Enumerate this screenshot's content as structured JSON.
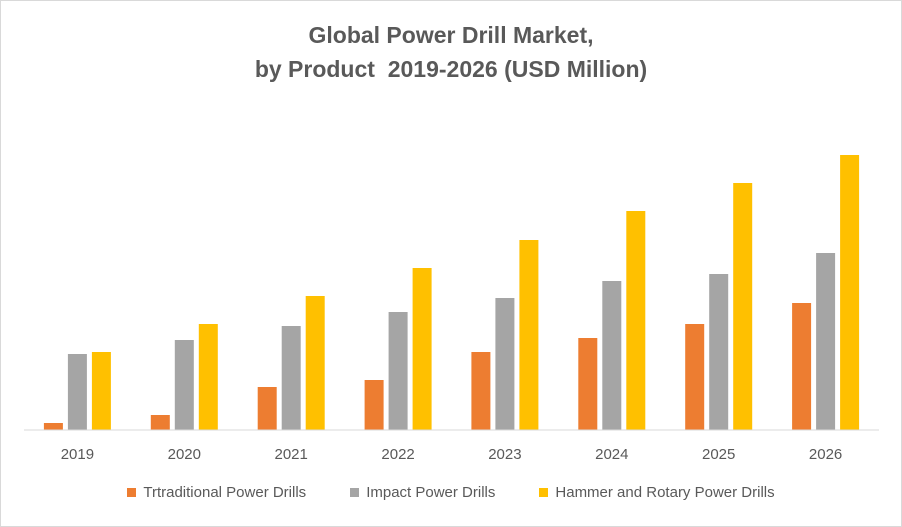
{
  "chart_data": {
    "type": "bar",
    "title_lines": [
      "Global Power Drill Market,",
      "by Product  2019-2026 (USD Million)"
    ],
    "categories": [
      "2019",
      "2020",
      "2021",
      "2022",
      "2023",
      "2024",
      "2025",
      "2026"
    ],
    "series": [
      {
        "name": "Trtraditional Power Drills",
        "color": "#ED7D31",
        "values": [
          7,
          15,
          43,
          50,
          78,
          92,
          106,
          127
        ]
      },
      {
        "name": "Impact Power Drills",
        "color": "#A5A5A5",
        "values": [
          76,
          90,
          104,
          118,
          132,
          149,
          156,
          177
        ]
      },
      {
        "name": "Hammer and Rotary Power Drills",
        "color": "#FFC000",
        "values": [
          78,
          106,
          134,
          162,
          190,
          219,
          247,
          275
        ]
      }
    ],
    "ylim": [
      0,
      300
    ],
    "xlabel": "",
    "ylabel": "",
    "legend_position": "bottom",
    "grid": false
  }
}
